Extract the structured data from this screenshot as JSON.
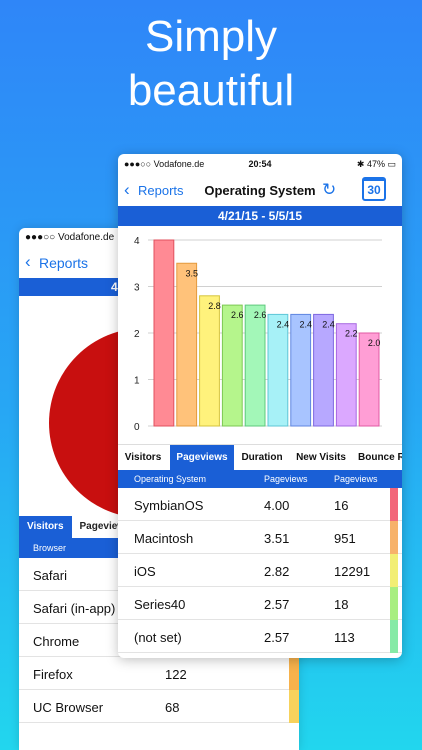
{
  "headline": {
    "line1": "Simply",
    "line2": "beautiful"
  },
  "back_screen": {
    "status_carrier": "●●●○○ Vodafone.de",
    "nav_back": "Reports",
    "band_text": "4",
    "tabs": [
      "Visitors",
      "Pageview"
    ],
    "column_header": "Browser",
    "rows": [
      {
        "name": "Safari",
        "value": "",
        "color": ""
      },
      {
        "name": "Safari (in-app)",
        "value": "",
        "color": ""
      },
      {
        "name": "Chrome",
        "value": "",
        "color": ""
      },
      {
        "name": "Firefox",
        "value": "122",
        "color": "#f7b24c"
      },
      {
        "name": "UC Browser",
        "value": "68",
        "color": "#f7d25c"
      }
    ]
  },
  "front_screen": {
    "status": {
      "carrier": "●●●○○ Vodafone.de",
      "time": "20:54",
      "battery": "47%"
    },
    "nav": {
      "back": "Reports",
      "title": "Operating System",
      "calendar_day": "30"
    },
    "date_range": "4/21/15 - 5/5/15",
    "tabs": [
      "Visitors",
      "Pageviews",
      "Duration",
      "New Visits",
      "Bounce R"
    ],
    "table_headers": [
      "Operating System",
      "Pageviews",
      "Pageviews"
    ],
    "rows": [
      {
        "os": "SymbianOS",
        "avg": "4.00",
        "count": "16",
        "color": "#f2677a"
      },
      {
        "os": "Macintosh",
        "avg": "3.51",
        "count": "951",
        "color": "#f7b26a"
      },
      {
        "os": "iOS",
        "avg": "2.82",
        "count": "12291",
        "color": "#f2ee74"
      },
      {
        "os": "Series40",
        "avg": "2.57",
        "count": "18",
        "color": "#a8ee80"
      },
      {
        "os": "(not set)",
        "avg": "2.57",
        "count": "113",
        "color": "#86eaa6"
      }
    ]
  },
  "chart_data": {
    "type": "bar",
    "y_ticks": [
      0,
      1,
      2,
      3,
      4
    ],
    "ylim": [
      0,
      4
    ],
    "grid": true,
    "bars": [
      {
        "value": 4.0,
        "label": "",
        "fill": "#ff8a94",
        "stroke": "#e0505e"
      },
      {
        "value": 3.5,
        "label": "3.5",
        "fill": "#ffc27a",
        "stroke": "#e49a3e"
      },
      {
        "value": 2.8,
        "label": "2.8",
        "fill": "#fff27c",
        "stroke": "#d6c43c"
      },
      {
        "value": 2.6,
        "label": "2.6",
        "fill": "#b5f58c",
        "stroke": "#7cc852"
      },
      {
        "value": 2.6,
        "label": "2.6",
        "fill": "#a3f7b8",
        "stroke": "#5ec97c"
      },
      {
        "value": 2.4,
        "label": "2.4",
        "fill": "#a7f1f7",
        "stroke": "#5ec6d6"
      },
      {
        "value": 2.4,
        "label": "2.4",
        "fill": "#a8c4ff",
        "stroke": "#5f86e0"
      },
      {
        "value": 2.4,
        "label": "2.4",
        "fill": "#b7a8ff",
        "stroke": "#7d67e0"
      },
      {
        "value": 2.2,
        "label": "2.2",
        "fill": "#dba8ff",
        "stroke": "#a768e0"
      },
      {
        "value": 2.0,
        "label": "2.0",
        "fill": "#ff9ed5",
        "stroke": "#e05aa4"
      }
    ]
  }
}
